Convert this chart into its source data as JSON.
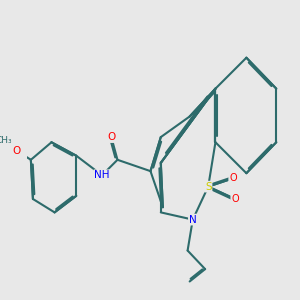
{
  "bg_color": "#e8e8e8",
  "bond_color": "#2d6b6b",
  "N_color": "#0000ff",
  "O_color": "#ff0000",
  "S_color": "#cccc00",
  "bond_width": 1.5,
  "figsize": [
    3.0,
    3.0
  ],
  "dpi": 100,
  "xlim": [
    0,
    10
  ],
  "ylim": [
    0,
    10
  ]
}
